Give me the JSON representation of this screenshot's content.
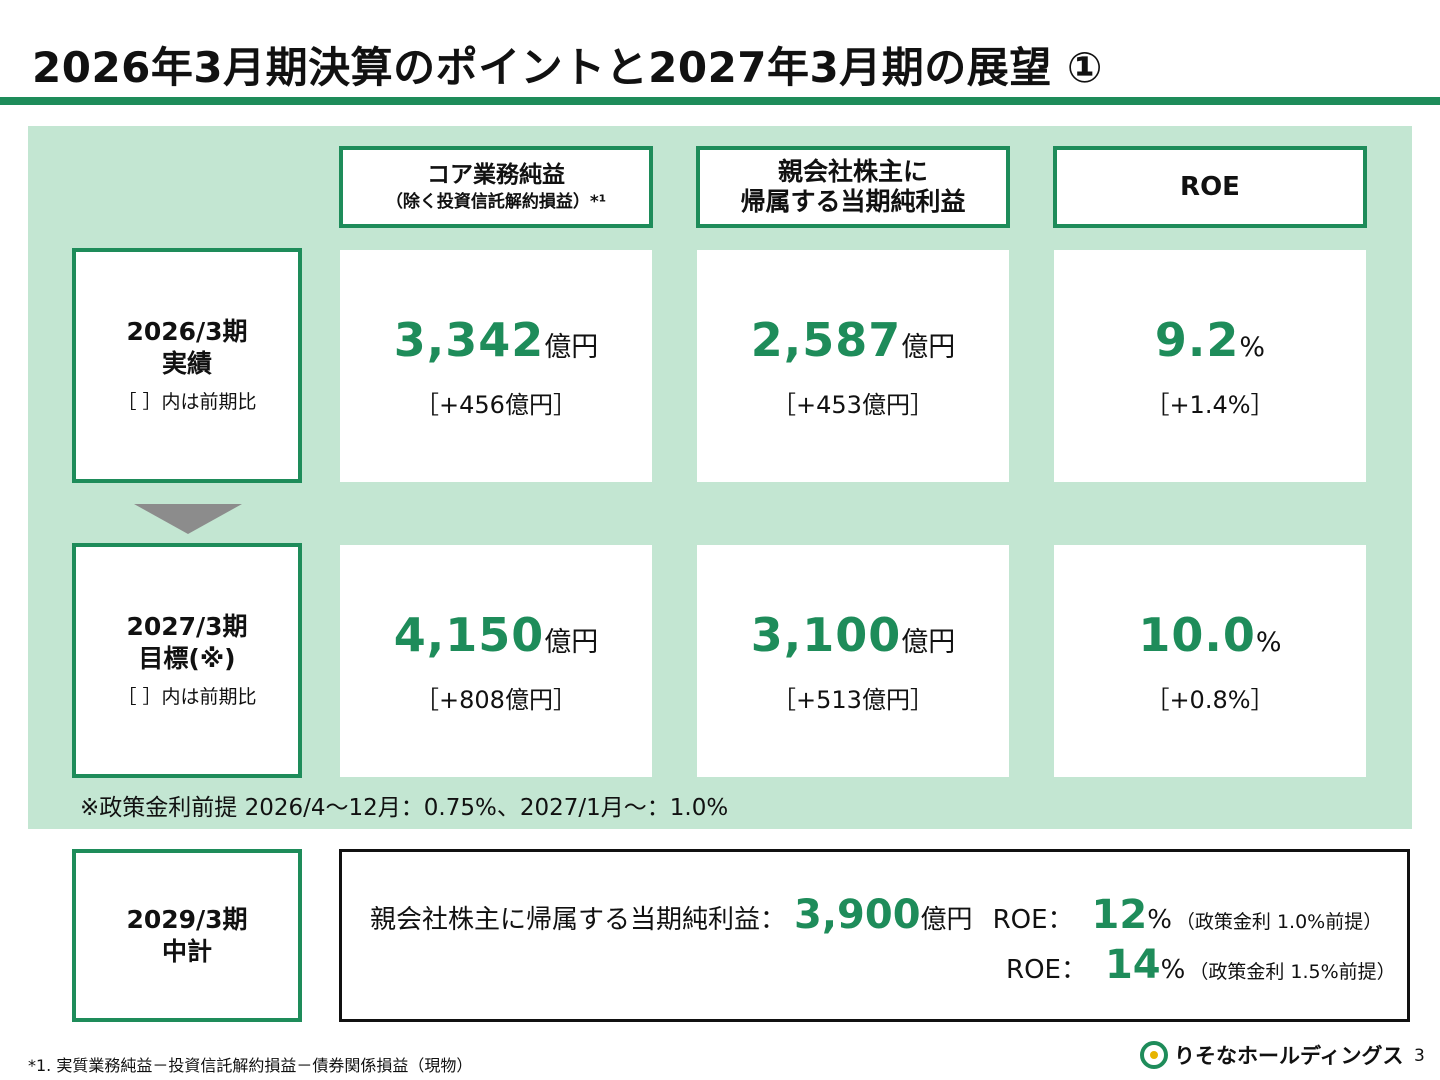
{
  "title": "2026年3月期決算のポイントと2027年3月期の展望 ①",
  "columns": [
    {
      "line1": "コア業務純益",
      "line2": "（除く投資信託解約損益）*¹"
    },
    {
      "line1": "親会社株主に",
      "line2": "帰属する当期純利益"
    },
    {
      "line1": "ROE"
    }
  ],
  "rows": [
    {
      "period": "2026/3期",
      "kind": "実績",
      "note": "［ ］内は前期比",
      "cells": [
        {
          "value": "3,342",
          "unit": "億円",
          "diff": "［+456億円］"
        },
        {
          "value": "2,587",
          "unit": "億円",
          "diff": "［+453億円］"
        },
        {
          "value": "9.2",
          "unit": "%",
          "diff": "［+1.4%］"
        }
      ]
    },
    {
      "period": "2027/3期",
      "kind": "目標(※)",
      "note": "［ ］内は前期比",
      "cells": [
        {
          "value": "4,150",
          "unit": "億円",
          "diff": "［+808億円］"
        },
        {
          "value": "3,100",
          "unit": "億円",
          "diff": "［+513億円］"
        },
        {
          "value": "10.0",
          "unit": "%",
          "diff": "［+0.8%］"
        }
      ]
    }
  ],
  "assumption_note": "※政策金利前提  2026/4～12月：0.75%、2027/1月～：1.0%",
  "midterm": {
    "period": "2029/3期",
    "kind": "中計",
    "profit_label": "親会社株主に帰属する当期純利益：",
    "profit_value": "3,900",
    "profit_unit": "億円",
    "roe_label": "ROE：",
    "roe1_value": "12",
    "roe1_unit": "%",
    "roe1_note": "（政策金利 1.0%前提）",
    "roe2_value": "14",
    "roe2_unit": "%",
    "roe2_note": "（政策金利 1.5%前提）"
  },
  "footnote": "*1. 実質業務純益－投資信託解約損益－債券関係損益（現物）",
  "logo_text": "りそなホールディングス",
  "page_number": "3",
  "colors": {
    "accent": "#1e8c5a",
    "panel": "#c3e6d2",
    "arrow": "#8c8c8c"
  }
}
